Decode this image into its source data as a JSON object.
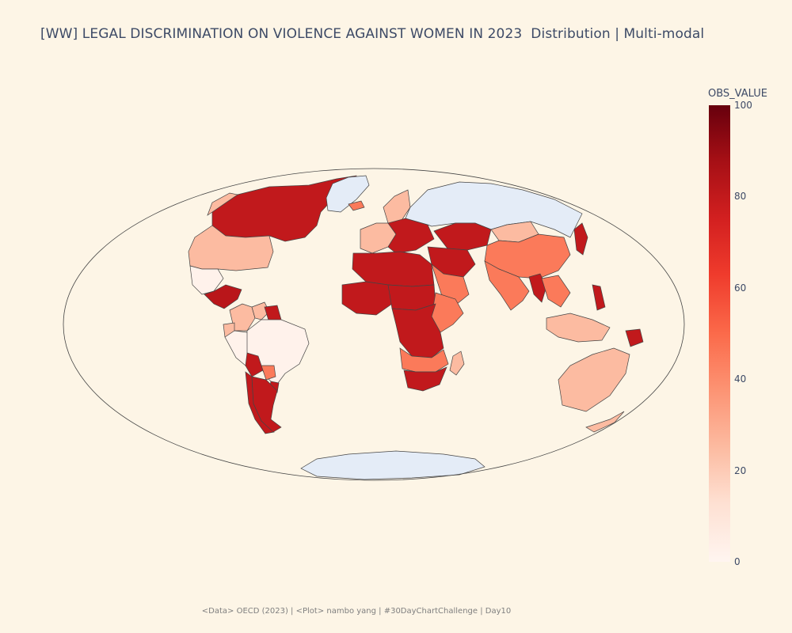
{
  "title": "[WW] LEGAL DISCRIMINATION ON VIOLENCE AGAINST WOMEN IN 2023  Distribution | Multi-modal",
  "footer": "<Data> OECD (2023) | <Plot> nambo yang | #30DayChartChallenge | Day10",
  "colorbar": {
    "title": "OBS_VALUE",
    "ticks": [
      "100",
      "80",
      "60",
      "40",
      "20",
      "0"
    ],
    "range": [
      0,
      100
    ]
  },
  "map": {
    "projection": "mollweide",
    "no_data_color": "#e4ecf7",
    "ocean_color": "#fdf5e6",
    "colorscale": "Reds",
    "regions": [
      {
        "name": "Canada",
        "value": 80
      },
      {
        "name": "Alaska",
        "value": 25
      },
      {
        "name": "Greenland",
        "value": null
      },
      {
        "name": "United States",
        "value": 25
      },
      {
        "name": "Mexico",
        "value": 2
      },
      {
        "name": "Central America",
        "value": 82
      },
      {
        "name": "Colombia",
        "value": 25
      },
      {
        "name": "Venezuela",
        "value": 25
      },
      {
        "name": "Guyana",
        "value": 80
      },
      {
        "name": "Ecuador",
        "value": 25
      },
      {
        "name": "Peru",
        "value": 2
      },
      {
        "name": "Brazil",
        "value": 2
      },
      {
        "name": "Bolivia",
        "value": 80
      },
      {
        "name": "Paraguay",
        "value": 45
      },
      {
        "name": "Uruguay",
        "value": 80
      },
      {
        "name": "Chile",
        "value": 80
      },
      {
        "name": "Argentina",
        "value": 80
      },
      {
        "name": "Iceland",
        "value": 45
      },
      {
        "name": "Scandinavia",
        "value": 25
      },
      {
        "name": "Western Europe",
        "value": 25
      },
      {
        "name": "Eastern Europe",
        "value": 80
      },
      {
        "name": "Russia",
        "value": null
      },
      {
        "name": "Kazakhstan",
        "value": 80
      },
      {
        "name": "Middle East",
        "value": 80
      },
      {
        "name": "Arabian Peninsula",
        "value": 45
      },
      {
        "name": "North Africa",
        "value": 80
      },
      {
        "name": "West Africa",
        "value": 80
      },
      {
        "name": "Sahel",
        "value": 80
      },
      {
        "name": "East Africa",
        "value": 45
      },
      {
        "name": "Central Africa",
        "value": 80
      },
      {
        "name": "Southern Africa",
        "value": 45
      },
      {
        "name": "South Africa",
        "value": 80
      },
      {
        "name": "Madagascar",
        "value": 25
      },
      {
        "name": "Mongolia",
        "value": 25
      },
      {
        "name": "China",
        "value": 45
      },
      {
        "name": "India",
        "value": 45
      },
      {
        "name": "Myanmar",
        "value": 80
      },
      {
        "name": "Southeast Asia",
        "value": 45
      },
      {
        "name": "Japan",
        "value": 80
      },
      {
        "name": "Philippines",
        "value": 80
      },
      {
        "name": "Indonesia",
        "value": 25
      },
      {
        "name": "Papua New Guinea",
        "value": 80
      },
      {
        "name": "Australia",
        "value": 25
      },
      {
        "name": "New Zealand",
        "value": 25
      },
      {
        "name": "Antarctica",
        "value": null
      }
    ]
  }
}
